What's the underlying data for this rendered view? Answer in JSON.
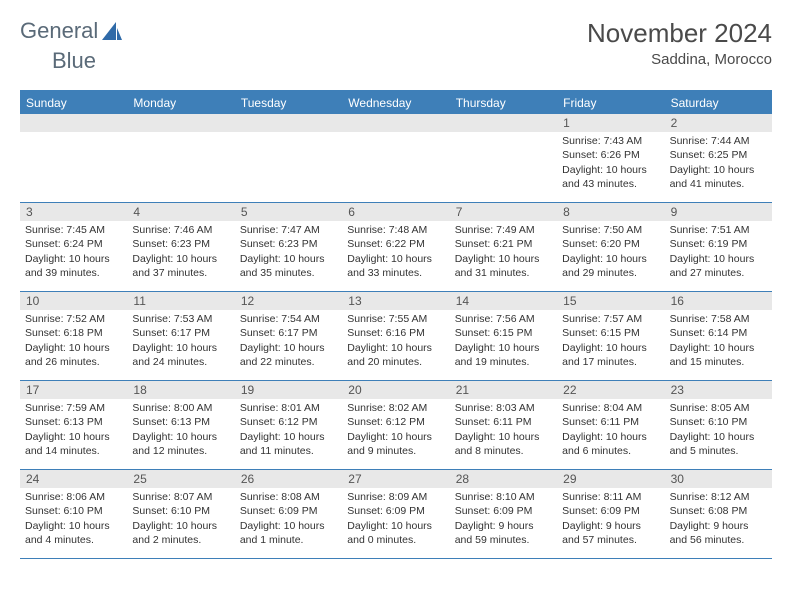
{
  "logo": {
    "text_a": "General",
    "text_b": "Blue"
  },
  "title": "November 2024",
  "location": "Saddina, Morocco",
  "colors": {
    "header_bg": "#3e7fb8",
    "header_text": "#ffffff",
    "daynum_bg": "#e8e8e8",
    "border": "#3e7fb8"
  },
  "weekdays": [
    "Sunday",
    "Monday",
    "Tuesday",
    "Wednesday",
    "Thursday",
    "Friday",
    "Saturday"
  ],
  "weeks": [
    [
      {
        "n": "",
        "empty": true
      },
      {
        "n": "",
        "empty": true
      },
      {
        "n": "",
        "empty": true
      },
      {
        "n": "",
        "empty": true
      },
      {
        "n": "",
        "empty": true
      },
      {
        "n": "1",
        "sunrise": "Sunrise: 7:43 AM",
        "sunset": "Sunset: 6:26 PM",
        "daylight": "Daylight: 10 hours and 43 minutes."
      },
      {
        "n": "2",
        "sunrise": "Sunrise: 7:44 AM",
        "sunset": "Sunset: 6:25 PM",
        "daylight": "Daylight: 10 hours and 41 minutes."
      }
    ],
    [
      {
        "n": "3",
        "sunrise": "Sunrise: 7:45 AM",
        "sunset": "Sunset: 6:24 PM",
        "daylight": "Daylight: 10 hours and 39 minutes."
      },
      {
        "n": "4",
        "sunrise": "Sunrise: 7:46 AM",
        "sunset": "Sunset: 6:23 PM",
        "daylight": "Daylight: 10 hours and 37 minutes."
      },
      {
        "n": "5",
        "sunrise": "Sunrise: 7:47 AM",
        "sunset": "Sunset: 6:23 PM",
        "daylight": "Daylight: 10 hours and 35 minutes."
      },
      {
        "n": "6",
        "sunrise": "Sunrise: 7:48 AM",
        "sunset": "Sunset: 6:22 PM",
        "daylight": "Daylight: 10 hours and 33 minutes."
      },
      {
        "n": "7",
        "sunrise": "Sunrise: 7:49 AM",
        "sunset": "Sunset: 6:21 PM",
        "daylight": "Daylight: 10 hours and 31 minutes."
      },
      {
        "n": "8",
        "sunrise": "Sunrise: 7:50 AM",
        "sunset": "Sunset: 6:20 PM",
        "daylight": "Daylight: 10 hours and 29 minutes."
      },
      {
        "n": "9",
        "sunrise": "Sunrise: 7:51 AM",
        "sunset": "Sunset: 6:19 PM",
        "daylight": "Daylight: 10 hours and 27 minutes."
      }
    ],
    [
      {
        "n": "10",
        "sunrise": "Sunrise: 7:52 AM",
        "sunset": "Sunset: 6:18 PM",
        "daylight": "Daylight: 10 hours and 26 minutes."
      },
      {
        "n": "11",
        "sunrise": "Sunrise: 7:53 AM",
        "sunset": "Sunset: 6:17 PM",
        "daylight": "Daylight: 10 hours and 24 minutes."
      },
      {
        "n": "12",
        "sunrise": "Sunrise: 7:54 AM",
        "sunset": "Sunset: 6:17 PM",
        "daylight": "Daylight: 10 hours and 22 minutes."
      },
      {
        "n": "13",
        "sunrise": "Sunrise: 7:55 AM",
        "sunset": "Sunset: 6:16 PM",
        "daylight": "Daylight: 10 hours and 20 minutes."
      },
      {
        "n": "14",
        "sunrise": "Sunrise: 7:56 AM",
        "sunset": "Sunset: 6:15 PM",
        "daylight": "Daylight: 10 hours and 19 minutes."
      },
      {
        "n": "15",
        "sunrise": "Sunrise: 7:57 AM",
        "sunset": "Sunset: 6:15 PM",
        "daylight": "Daylight: 10 hours and 17 minutes."
      },
      {
        "n": "16",
        "sunrise": "Sunrise: 7:58 AM",
        "sunset": "Sunset: 6:14 PM",
        "daylight": "Daylight: 10 hours and 15 minutes."
      }
    ],
    [
      {
        "n": "17",
        "sunrise": "Sunrise: 7:59 AM",
        "sunset": "Sunset: 6:13 PM",
        "daylight": "Daylight: 10 hours and 14 minutes."
      },
      {
        "n": "18",
        "sunrise": "Sunrise: 8:00 AM",
        "sunset": "Sunset: 6:13 PM",
        "daylight": "Daylight: 10 hours and 12 minutes."
      },
      {
        "n": "19",
        "sunrise": "Sunrise: 8:01 AM",
        "sunset": "Sunset: 6:12 PM",
        "daylight": "Daylight: 10 hours and 11 minutes."
      },
      {
        "n": "20",
        "sunrise": "Sunrise: 8:02 AM",
        "sunset": "Sunset: 6:12 PM",
        "daylight": "Daylight: 10 hours and 9 minutes."
      },
      {
        "n": "21",
        "sunrise": "Sunrise: 8:03 AM",
        "sunset": "Sunset: 6:11 PM",
        "daylight": "Daylight: 10 hours and 8 minutes."
      },
      {
        "n": "22",
        "sunrise": "Sunrise: 8:04 AM",
        "sunset": "Sunset: 6:11 PM",
        "daylight": "Daylight: 10 hours and 6 minutes."
      },
      {
        "n": "23",
        "sunrise": "Sunrise: 8:05 AM",
        "sunset": "Sunset: 6:10 PM",
        "daylight": "Daylight: 10 hours and 5 minutes."
      }
    ],
    [
      {
        "n": "24",
        "sunrise": "Sunrise: 8:06 AM",
        "sunset": "Sunset: 6:10 PM",
        "daylight": "Daylight: 10 hours and 4 minutes."
      },
      {
        "n": "25",
        "sunrise": "Sunrise: 8:07 AM",
        "sunset": "Sunset: 6:10 PM",
        "daylight": "Daylight: 10 hours and 2 minutes."
      },
      {
        "n": "26",
        "sunrise": "Sunrise: 8:08 AM",
        "sunset": "Sunset: 6:09 PM",
        "daylight": "Daylight: 10 hours and 1 minute."
      },
      {
        "n": "27",
        "sunrise": "Sunrise: 8:09 AM",
        "sunset": "Sunset: 6:09 PM",
        "daylight": "Daylight: 10 hours and 0 minutes."
      },
      {
        "n": "28",
        "sunrise": "Sunrise: 8:10 AM",
        "sunset": "Sunset: 6:09 PM",
        "daylight": "Daylight: 9 hours and 59 minutes."
      },
      {
        "n": "29",
        "sunrise": "Sunrise: 8:11 AM",
        "sunset": "Sunset: 6:09 PM",
        "daylight": "Daylight: 9 hours and 57 minutes."
      },
      {
        "n": "30",
        "sunrise": "Sunrise: 8:12 AM",
        "sunset": "Sunset: 6:08 PM",
        "daylight": "Daylight: 9 hours and 56 minutes."
      }
    ]
  ]
}
